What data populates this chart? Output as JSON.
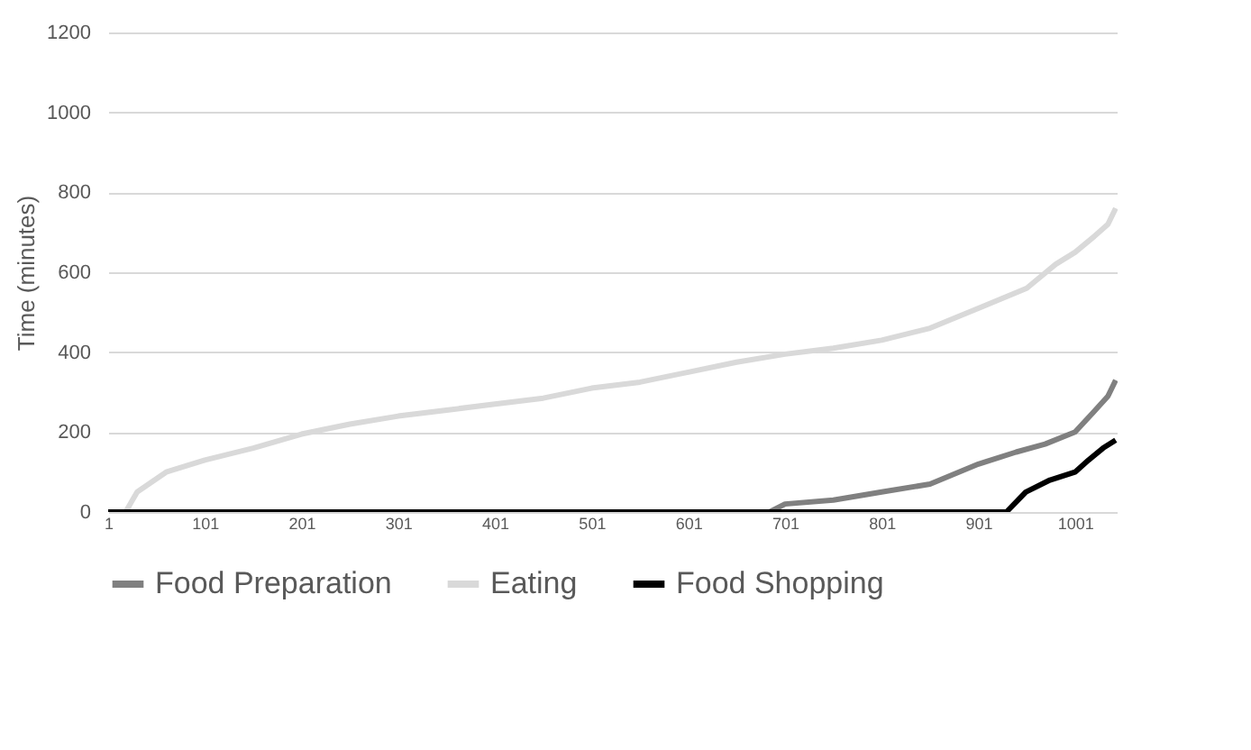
{
  "chart_data": {
    "type": "line",
    "ylabel": "Time (minutes)",
    "xlim": [
      1,
      1045
    ],
    "xticks": [
      1,
      101,
      201,
      301,
      401,
      501,
      601,
      701,
      801,
      901,
      1001
    ],
    "ylim": [
      0,
      1200
    ],
    "yticks": [
      0,
      200,
      400,
      600,
      800,
      1000,
      1200
    ],
    "grid": "y",
    "legend": "bottom",
    "line_style": "solid",
    "marker": "none",
    "series": [
      {
        "name": "Food Preparation",
        "color": "#808080",
        "x": [
          685,
          701,
          751,
          801,
          851,
          901,
          940,
          970,
          1001,
          1020,
          1035,
          1043
        ],
        "values": [
          0,
          20,
          30,
          50,
          70,
          120,
          150,
          170,
          200,
          250,
          290,
          330
        ]
      },
      {
        "name": "Eating",
        "color": "#d9d9d9",
        "x": [
          19,
          31,
          61,
          101,
          151,
          201,
          251,
          301,
          351,
          401,
          451,
          501,
          551,
          601,
          651,
          701,
          751,
          801,
          851,
          901,
          951,
          981,
          1001,
          1021,
          1035,
          1043
        ],
        "values": [
          0,
          50,
          100,
          130,
          160,
          195,
          220,
          240,
          255,
          270,
          285,
          310,
          325,
          350,
          375,
          395,
          410,
          430,
          460,
          510,
          560,
          620,
          650,
          690,
          720,
          760
        ]
      },
      {
        "name": "Food Shopping",
        "color": "#000000",
        "x": [
          1,
          930,
          950,
          975,
          1001,
          1015,
          1030,
          1043
        ],
        "values": [
          0,
          0,
          50,
          80,
          100,
          130,
          160,
          180
        ]
      }
    ]
  }
}
